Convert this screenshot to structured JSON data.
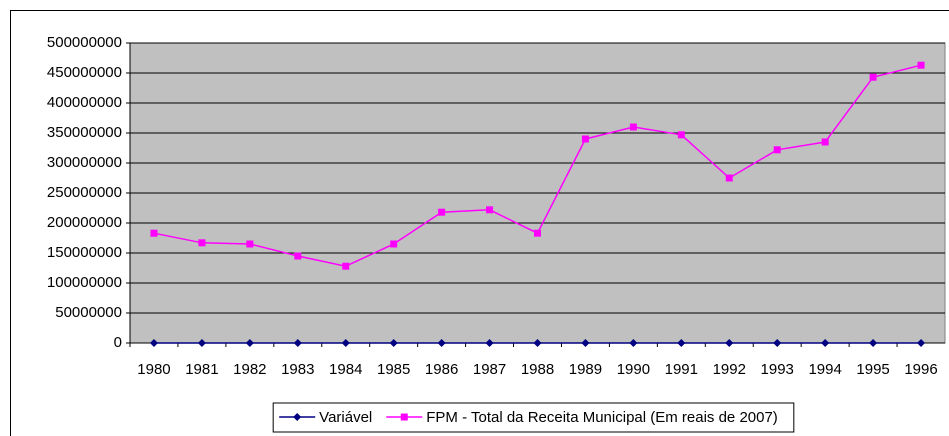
{
  "chart_data": {
    "type": "line",
    "categories": [
      "1980",
      "1981",
      "1982",
      "1983",
      "1984",
      "1985",
      "1986",
      "1987",
      "1988",
      "1989",
      "1990",
      "1991",
      "1992",
      "1993",
      "1994",
      "1995",
      "1996"
    ],
    "series": [
      {
        "name": "Variável",
        "color": "#000080",
        "marker": "diamond",
        "values": [
          0,
          0,
          0,
          0,
          0,
          0,
          0,
          0,
          0,
          0,
          0,
          0,
          0,
          0,
          0,
          0,
          0
        ]
      },
      {
        "name": "FPM - Total da Receita Municipal (Em reais de 2007)",
        "color": "#ff00ff",
        "marker": "square",
        "values": [
          183000000,
          167000000,
          165000000,
          145000000,
          128000000,
          165000000,
          218000000,
          222000000,
          183000000,
          340000000,
          360000000,
          347000000,
          275000000,
          322000000,
          335000000,
          443000000,
          463000000
        ]
      }
    ],
    "ylim": [
      0,
      500000000
    ],
    "yticks": [
      0,
      50000000,
      100000000,
      150000000,
      200000000,
      250000000,
      300000000,
      350000000,
      400000000,
      450000000,
      500000000
    ],
    "grid": true,
    "legend": "bottom",
    "plot_background": "#c0c0c0"
  }
}
